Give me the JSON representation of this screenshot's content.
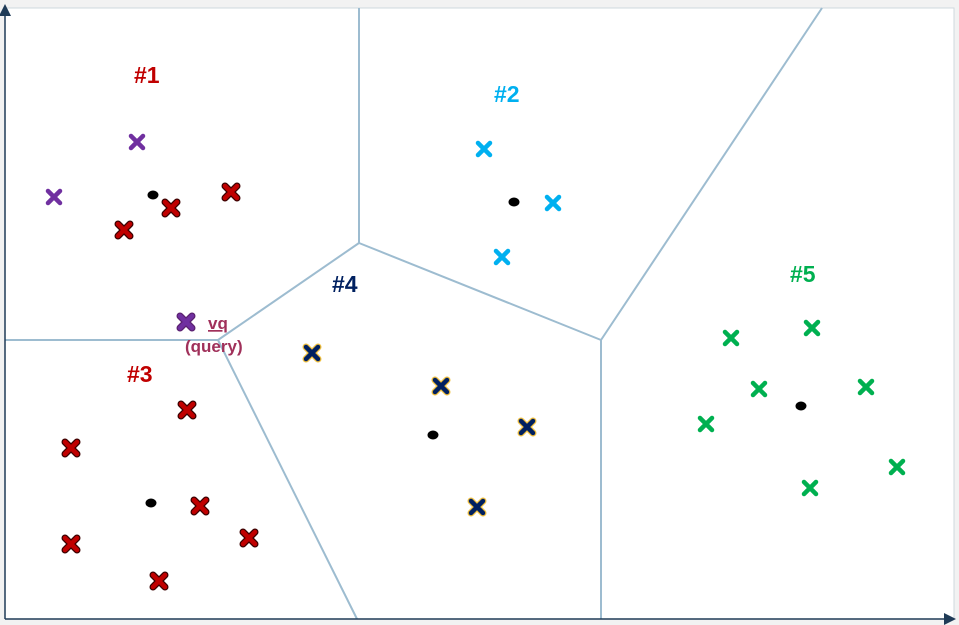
{
  "cells": [
    {
      "label": "#1",
      "color": "#c00000"
    },
    {
      "label": "#2",
      "color": "#00b0f0"
    },
    {
      "label": "#3",
      "color": "#c00000"
    },
    {
      "label": "#4",
      "color": "#002060"
    },
    {
      "label": "#5",
      "color": "#00b050"
    }
  ],
  "query": {
    "label": "vq",
    "sublabel": "(query)",
    "color": "#a0305a",
    "marker_color": "#7030a0"
  },
  "boundary_color": "#9dbcd0",
  "marker_colors": {
    "dark_red": "#c00000",
    "purple": "#7030a0",
    "blue": "#00b0f0",
    "navy": "#002060",
    "green": "#00b050",
    "centroid": "#000000"
  }
}
